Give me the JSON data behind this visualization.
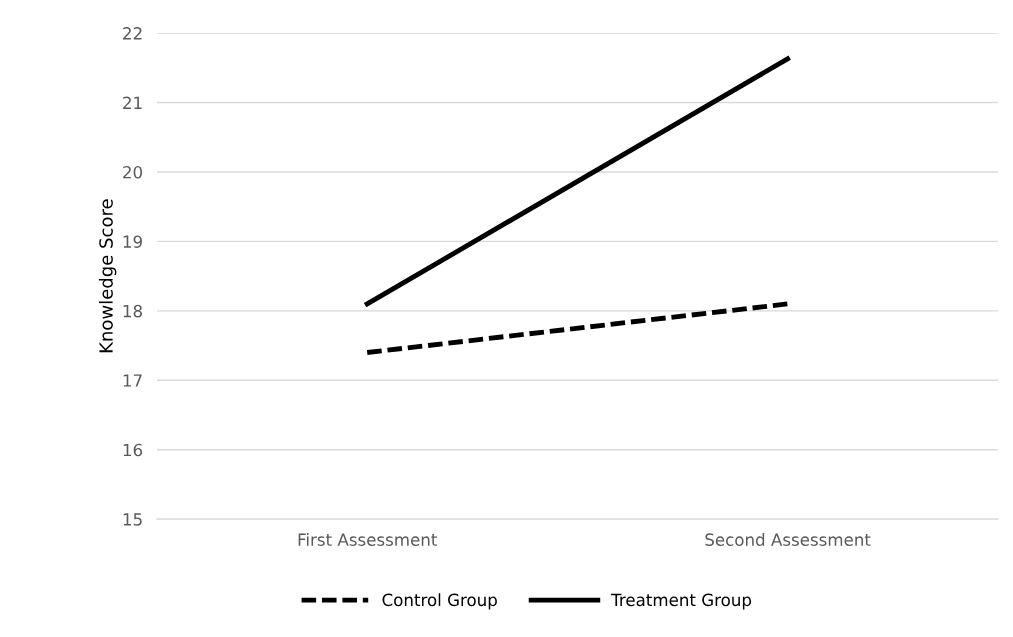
{
  "chart_data": {
    "type": "line",
    "ylabel": "Knowledge Score",
    "categories": [
      "First Assessment",
      "Second Assessment"
    ],
    "series": [
      {
        "name": "Control Group",
        "color": "#000000",
        "values": [
          17.4,
          18.1
        ],
        "line_style": "dashed"
      },
      {
        "name": "Treatment Group",
        "color": "#000000",
        "values": [
          18.1,
          21.63
        ],
        "line_style": "solid"
      }
    ],
    "ylim": [
      15,
      22
    ],
    "yticks": [
      15,
      16,
      17,
      18,
      19,
      20,
      21,
      22
    ],
    "grid": "y",
    "legend": "bottom"
  }
}
